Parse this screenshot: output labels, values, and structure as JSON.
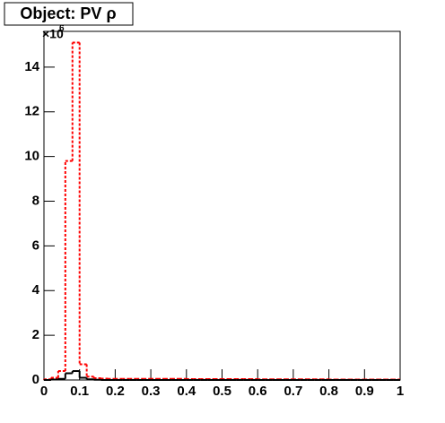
{
  "chart_data": {
    "type": "histogram",
    "title": "Object: PV ρ",
    "y_multiplier": {
      "base": "×10",
      "exponent": "6"
    },
    "bins": [
      0,
      0.02,
      0.04,
      0.06,
      0.08,
      0.1,
      0.12,
      0.14,
      0.16,
      0.18,
      0.2,
      0.22,
      0.24,
      0.26,
      0.28,
      0.3,
      0.32,
      0.34,
      0.36,
      0.38,
      0.4,
      0.42,
      0.44,
      0.46,
      0.48,
      0.5,
      0.52,
      0.54,
      0.56,
      0.58,
      0.6,
      0.62,
      0.64,
      0.66,
      0.68,
      0.7,
      0.72,
      0.74,
      0.76,
      0.78,
      0.8,
      0.82,
      0.84,
      0.86,
      0.88,
      0.9,
      0.92,
      0.94,
      0.96,
      0.98,
      1
    ],
    "series": [
      {
        "color": "#ff0000",
        "dashed": true,
        "values": [
          0.03,
          0.1,
          0.4,
          9.8,
          15.1,
          0.7,
          0.15,
          0.08,
          0.06,
          0.05,
          0.05,
          0.05,
          0.05,
          0.05,
          0.05,
          0.05,
          0.05,
          0.05,
          0.05,
          0.05,
          0.04,
          0.04,
          0.04,
          0.04,
          0.04,
          0.04,
          0.04,
          0.04,
          0.04,
          0.04,
          0.03,
          0.03,
          0.03,
          0.03,
          0.03,
          0.03,
          0.03,
          0.03,
          0.03,
          0.03,
          0.02,
          0.02,
          0.02,
          0.02,
          0.02,
          0.02,
          0.02,
          0.02,
          0.02,
          0.02
        ]
      },
      {
        "color": "#000000",
        "dashed": false,
        "values": [
          0,
          0.02,
          0.05,
          0.3,
          0.4,
          0.1,
          0.03,
          0.01,
          0,
          0,
          0,
          0,
          0,
          0,
          0,
          0,
          0,
          0,
          0,
          0,
          0,
          0,
          0,
          0,
          0,
          0,
          0,
          0,
          0,
          0,
          0,
          0,
          0,
          0,
          0,
          0,
          0,
          0,
          0,
          0,
          0,
          0,
          0,
          0,
          0,
          0,
          0,
          0,
          0,
          0
        ]
      }
    ],
    "xlim": [
      0,
      1
    ],
    "xticks": [
      0,
      0.1,
      0.2,
      0.3,
      0.4,
      0.5,
      0.6,
      0.7,
      0.8,
      0.9,
      1
    ],
    "ylim": [
      0,
      15.6
    ],
    "yticks": [
      0,
      2,
      4,
      6,
      8,
      10,
      12,
      14
    ]
  }
}
